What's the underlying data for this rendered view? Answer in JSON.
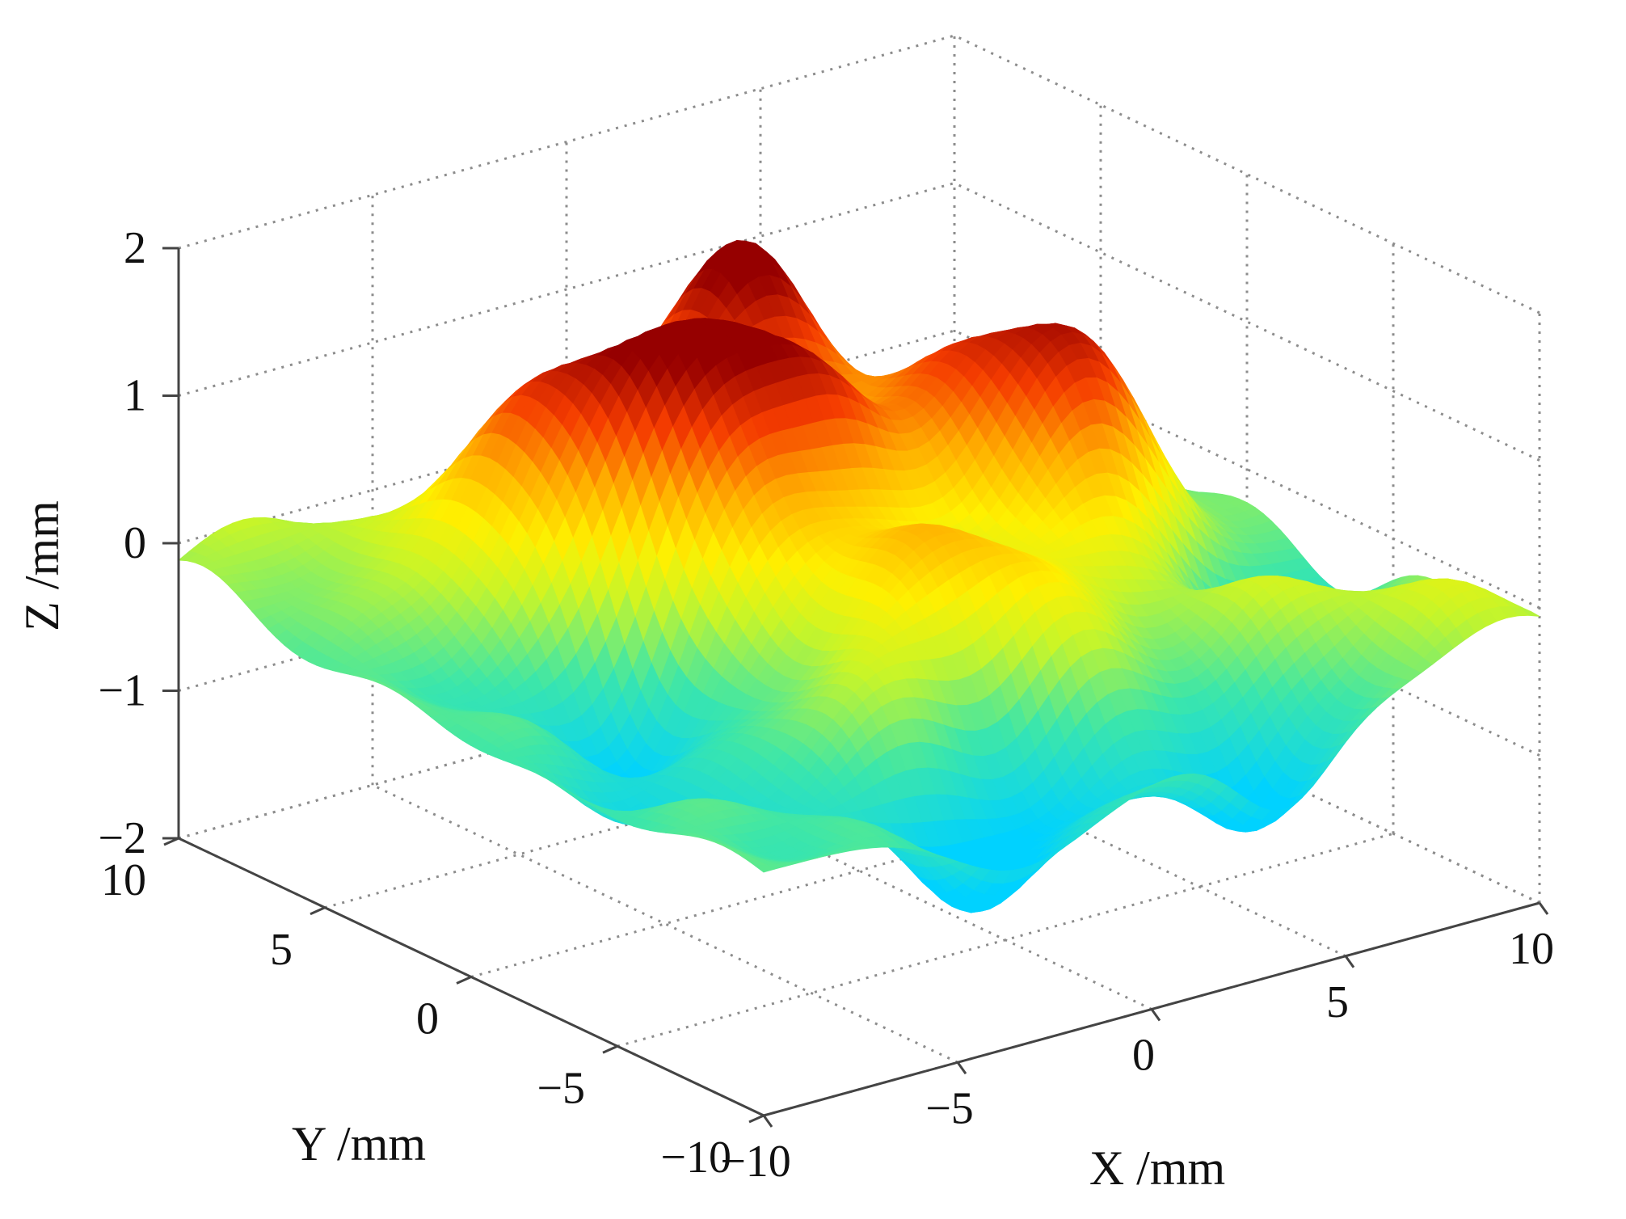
{
  "chart_data": {
    "type": "surface",
    "xlabel": "X /mm",
    "ylabel": "Y /mm",
    "zlabel": "Z /mm",
    "x_ticks": [
      {
        "value": -10,
        "label": "−10"
      },
      {
        "value": -5,
        "label": "−5"
      },
      {
        "value": 0,
        "label": "0"
      },
      {
        "value": 5,
        "label": "5"
      },
      {
        "value": 10,
        "label": "10"
      }
    ],
    "y_ticks": [
      {
        "value": -10,
        "label": "−10"
      },
      {
        "value": -5,
        "label": "−5"
      },
      {
        "value": 0,
        "label": "0"
      },
      {
        "value": 5,
        "label": "5"
      },
      {
        "value": 10,
        "label": "10"
      }
    ],
    "z_ticks": [
      {
        "value": -2,
        "label": "−2"
      },
      {
        "value": -1,
        "label": "−1"
      },
      {
        "value": 0,
        "label": "0"
      },
      {
        "value": 1,
        "label": "1"
      },
      {
        "value": 2,
        "label": "2"
      }
    ],
    "xlim": [
      -10,
      10
    ],
    "ylim": [
      -10,
      10
    ],
    "zlim": [
      -2,
      2
    ],
    "grid": true,
    "colormap": "jet",
    "surface_peaks": [
      {
        "x": -8.4,
        "y": 9.6,
        "z": 0.4,
        "sigma": 1.6
      },
      {
        "x": -5.0,
        "y": 5.8,
        "z": 1.0,
        "sigma": 1.5
      },
      {
        "x": -3.6,
        "y": 2.9,
        "z": 0.7,
        "sigma": 1.4
      },
      {
        "x": -2.8,
        "y": 3.2,
        "z": 0.95,
        "sigma": 1.9
      },
      {
        "x": -2.4,
        "y": -4.6,
        "z": 0.55,
        "sigma": 2.0
      },
      {
        "x": -1.8,
        "y": 0.2,
        "z": 0.65,
        "sigma": 1.4
      },
      {
        "x": -0.6,
        "y": 2.8,
        "z": 0.6,
        "sigma": 1.7
      },
      {
        "x": 0.4,
        "y": 6.8,
        "z": 0.7,
        "sigma": 2.2
      },
      {
        "x": 0.5,
        "y": -2.0,
        "z": 0.7,
        "sigma": 1.6
      },
      {
        "x": 0.6,
        "y": 1.6,
        "z": 0.9,
        "sigma": 1.2
      },
      {
        "x": 1.2,
        "y": -4.4,
        "z": 0.5,
        "sigma": 1.7
      },
      {
        "x": 2.3,
        "y": 6.2,
        "z": 1.3,
        "sigma": 1.8
      },
      {
        "x": 3.2,
        "y": 0.5,
        "z": 0.9,
        "sigma": 1.4
      },
      {
        "x": 4.6,
        "y": 2.4,
        "z": 0.9,
        "sigma": 1.7
      },
      {
        "x": 4.8,
        "y": -1.2,
        "z": 0.85,
        "sigma": 1.4
      },
      {
        "x": 6.6,
        "y": 0.2,
        "z": 0.7,
        "sigma": 1.6
      },
      {
        "x": 7.2,
        "y": -5.4,
        "z": 0.45,
        "sigma": 2.0
      },
      {
        "x": 9.2,
        "y": -9.4,
        "z": 0.35,
        "sigma": 1.5
      }
    ],
    "surface_troughs": [
      {
        "x": -3.4,
        "y": -8.2,
        "z": -0.8,
        "sigma": 1.7
      },
      {
        "x": -5.6,
        "y": 0.6,
        "z": -0.6,
        "sigma": 1.6
      },
      {
        "x": 1.6,
        "y": -0.2,
        "z": -0.5,
        "sigma": 1.7
      },
      {
        "x": 3.4,
        "y": -8.8,
        "z": -0.9,
        "sigma": 1.2
      },
      {
        "x": 8.0,
        "y": -3.6,
        "z": -0.8,
        "sigma": 1.3
      },
      {
        "x": -0.6,
        "y": -7.2,
        "z": -0.6,
        "sigma": 1.4
      },
      {
        "x": 5.8,
        "y": 5.4,
        "z": -0.4,
        "sigma": 1.8
      },
      {
        "x": -7.2,
        "y": -3.4,
        "z": -0.4,
        "sigma": 1.8
      }
    ]
  }
}
